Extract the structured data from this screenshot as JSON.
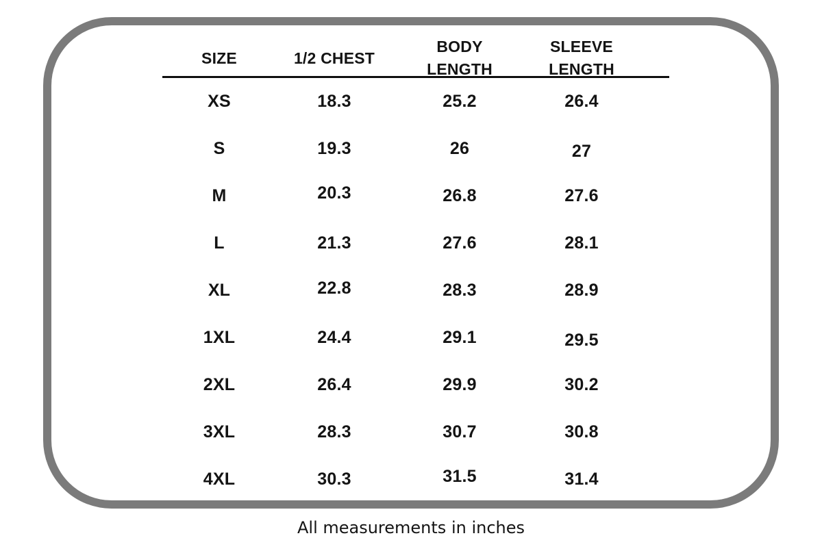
{
  "chart_data": {
    "type": "table",
    "columns": [
      "SIZE",
      "1/2 CHEST",
      "BODY LENGTH",
      "SLEEVE LENGTH"
    ],
    "rows": [
      [
        "XS",
        "18.3",
        "25.2",
        "26.4"
      ],
      [
        "S",
        "19.3",
        "26",
        "27"
      ],
      [
        "M",
        "20.3",
        "26.8",
        "27.6"
      ],
      [
        "L",
        "21.3",
        "27.6",
        "28.1"
      ],
      [
        "XL",
        "22.8",
        "28.3",
        "28.9"
      ],
      [
        "1XL",
        "24.4",
        "29.1",
        "29.5"
      ],
      [
        "2XL",
        "26.4",
        "29.9",
        "30.2"
      ],
      [
        "3XL",
        "28.3",
        "30.7",
        "30.8"
      ],
      [
        "4XL",
        "30.3",
        "31.5",
        "31.4"
      ]
    ],
    "footnote": "All measurements in inches",
    "units": "inches"
  },
  "colors": {
    "frame": "#7b7b7b",
    "divider": "#0f0f0f",
    "text": "#141414",
    "background": "#ffffff"
  }
}
